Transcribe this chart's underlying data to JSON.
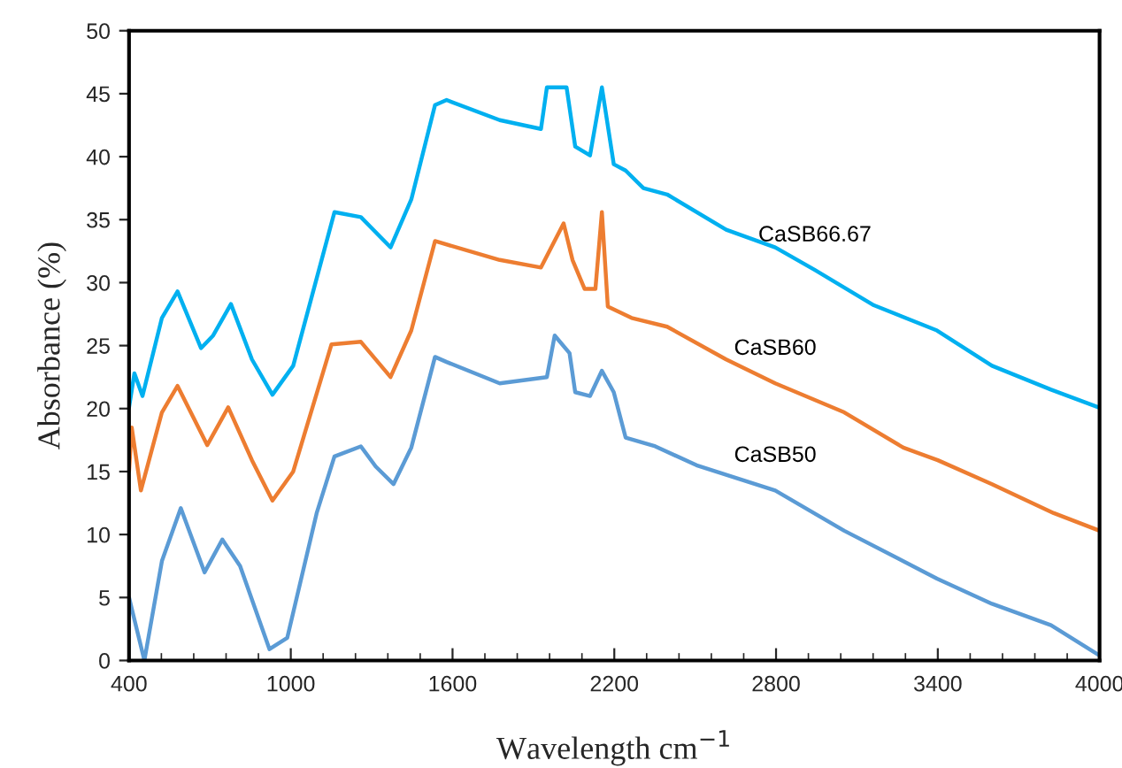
{
  "chart_data": {
    "type": "line",
    "xlabel": "Wavelength cm$^{−1}$",
    "ylabel": "Absorbance (%)",
    "xlim": [
      400,
      4000
    ],
    "ylim": [
      0,
      50
    ],
    "xticks": [
      400,
      {
        "value": 520,
        "label": null
      },
      {
        "value": 640,
        "label": null
      },
      {
        "value": 760,
        "label": null
      },
      {
        "value": 880,
        "label": null
      },
      1000,
      {
        "value": 1120,
        "label": null
      },
      {
        "value": 1240,
        "label": null
      },
      {
        "value": 1360,
        "label": null
      },
      {
        "value": 1480,
        "label": null
      },
      1600,
      {
        "value": 1720,
        "label": null
      },
      {
        "value": 1840,
        "label": null
      },
      {
        "value": 1960,
        "label": null
      },
      {
        "value": 2080,
        "label": null
      },
      2200,
      {
        "value": 2320,
        "label": null
      },
      {
        "value": 2440,
        "label": null
      },
      {
        "value": 2560,
        "label": null
      },
      {
        "value": 2680,
        "label": null
      },
      2800,
      {
        "value": 2920,
        "label": null
      },
      {
        "value": 3040,
        "label": null
      },
      {
        "value": 3160,
        "label": null
      },
      {
        "value": 3280,
        "label": null
      },
      3400,
      {
        "value": 3520,
        "label": null
      },
      {
        "value": 3640,
        "label": null
      },
      {
        "value": 3760,
        "label": null
      },
      {
        "value": 3880,
        "label": null
      },
      4000
    ],
    "yticks": [
      0,
      5,
      10,
      15,
      20,
      25,
      30,
      35,
      40,
      45,
      50
    ],
    "grid": false,
    "legend": false,
    "marker": "none",
    "line_style": "solid",
    "series": [
      {
        "name": "CaSB66.67",
        "color": "#00b0f0",
        "x": [
          400,
          420,
          450,
          522,
          580,
          667,
          712,
          778,
          856,
          932,
          1009,
          1162,
          1260,
          1370,
          1447,
          1535,
          1578,
          1775,
          1928,
          1950,
          1979,
          2023,
          2055,
          2110,
          2154,
          2198,
          2242,
          2308,
          2396,
          2615,
          2797,
          2944,
          3163,
          3397,
          3601,
          3820,
          3996
        ],
        "values": [
          20.1,
          22.8,
          21,
          27.2,
          29.3,
          24.8,
          25.8,
          28.3,
          23.9,
          21.1,
          23.4,
          35.6,
          35.2,
          32.8,
          36.6,
          44.1,
          44.5,
          42.9,
          42.2,
          45.5,
          45.5,
          45.5,
          40.8,
          40.1,
          45.5,
          39.4,
          38.9,
          37.5,
          37,
          34.2,
          32.8,
          31,
          28.2,
          26.2,
          23.4,
          21.5,
          20.1
        ]
      },
      {
        "name": "CaSB60",
        "color": "#ed7d31",
        "x": [
          400,
          410,
          444,
          522,
          580,
          690,
          768,
          856,
          932,
          1009,
          1151,
          1260,
          1370,
          1447,
          1535,
          1775,
          1928,
          2012,
          2045,
          2090,
          2130,
          2154,
          2176,
          2264,
          2396,
          2615,
          2797,
          3053,
          3272,
          3400,
          3601,
          3830,
          4000
        ],
        "values": [
          15,
          18.5,
          13.5,
          19.7,
          21.8,
          17.1,
          20.1,
          15.9,
          12.7,
          15,
          25.1,
          25.3,
          22.5,
          26.2,
          33.3,
          31.8,
          31.2,
          34.7,
          31.8,
          29.5,
          29.5,
          35.6,
          28.1,
          27.2,
          26.5,
          23.9,
          22,
          19.7,
          16.9,
          15.9,
          14,
          11.7,
          10.3
        ]
      },
      {
        "name": "CaSB50",
        "color": "#5b9bd5",
        "x": [
          400,
          457,
          522,
          592,
          680,
          746,
          812,
          921,
          987,
          1096,
          1162,
          1260,
          1315,
          1381,
          1447,
          1535,
          1578,
          1775,
          1950,
          1979,
          2034,
          2055,
          2110,
          2154,
          2198,
          2242,
          2352,
          2505,
          2797,
          3053,
          3397,
          3601,
          3820,
          4000
        ],
        "values": [
          5,
          0,
          7.9,
          12.1,
          7,
          9.6,
          7.5,
          0.9,
          1.8,
          11.7,
          16.2,
          17,
          15.4,
          14,
          16.9,
          24.1,
          23.7,
          22,
          22.5,
          25.8,
          24.4,
          21.3,
          21,
          23,
          21.3,
          17.7,
          17,
          15.5,
          13.5,
          10.3,
          6.5,
          4.5,
          2.8,
          0.4
        ]
      }
    ]
  }
}
